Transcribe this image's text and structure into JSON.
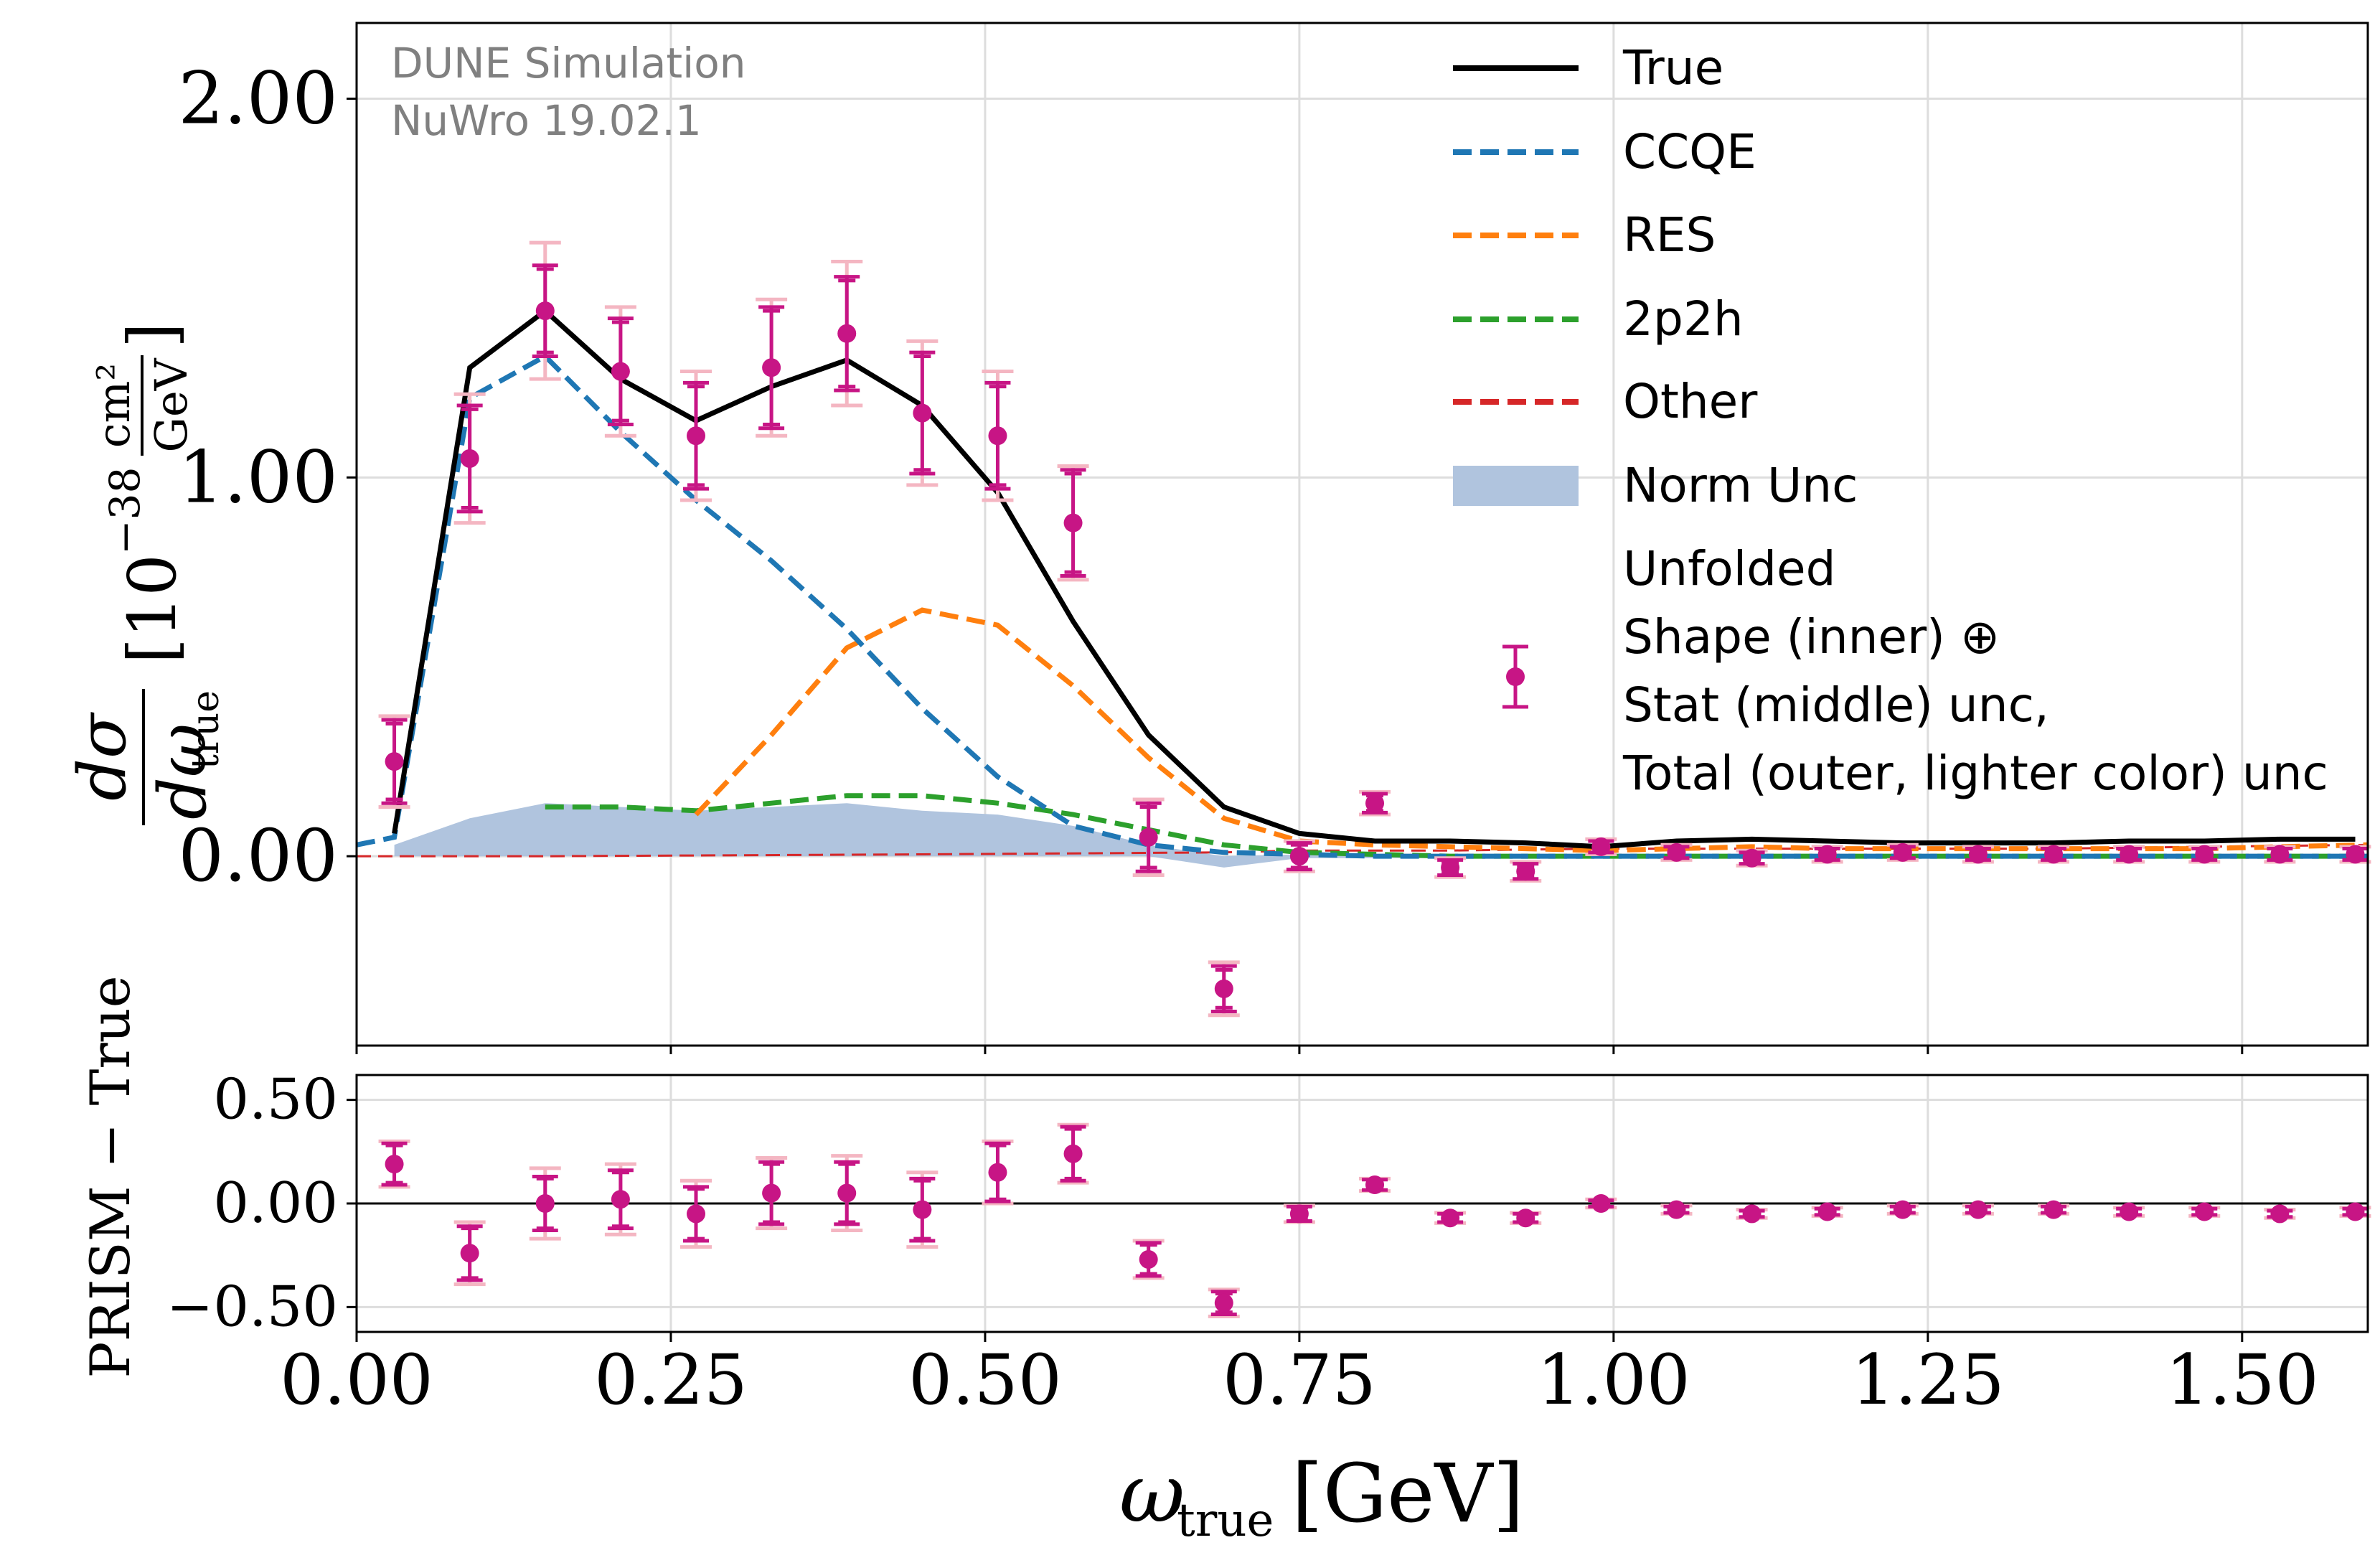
{
  "chart_data": [
    {
      "type": "line",
      "panel": "main",
      "annotation": [
        "DUNE Simulation",
        "NuWro 19.02.1"
      ],
      "ylabel_parts": {
        "num": "dσ",
        "den": "dω",
        "den_sub": "true",
        "unit_prefix": "[10",
        "unit_exp": "−38",
        "unit_num": "cm²",
        "unit_den": "GeV",
        "unit_close": "]"
      },
      "ylim": [
        -0.5,
        2.2
      ],
      "yticks": [
        0.0,
        1.0,
        2.0
      ],
      "ytick_labels": [
        "0.00",
        "1.00",
        "2.00"
      ],
      "xlim": [
        0.0,
        1.6
      ],
      "grid": true,
      "legend_position": "top-right",
      "colors": {
        "true": "#000000",
        "ccqe": "#1f77b4",
        "res": "#ff7f0e",
        "2p2h": "#2ca02c",
        "other": "#d62728",
        "norm": "#b0c4de",
        "unfolded": "#c71585",
        "unfolded_outer": "#f4b6c2",
        "grid": "#dddddd",
        "annotation": "#808080"
      },
      "legend_items": [
        {
          "key": "true",
          "label": "True",
          "style": "solid"
        },
        {
          "key": "ccqe",
          "label": "CCQE",
          "style": "dashed"
        },
        {
          "key": "res",
          "label": "RES",
          "style": "dashed"
        },
        {
          "key": "2p2h",
          "label": "2p2h",
          "style": "dashed"
        },
        {
          "key": "other",
          "label": "Other",
          "style": "dashed"
        },
        {
          "key": "norm",
          "label": "Norm Unc",
          "style": "band"
        },
        {
          "key": "unfolded",
          "label_lines": [
            "Unfolded",
            "Shape (inner) ⊕",
            "Stat (middle) unc,",
            "Total (outer, lighter color) unc"
          ],
          "style": "errorbar"
        }
      ],
      "series": [
        {
          "name": "True",
          "key": "true",
          "x": [
            0.03,
            0.09,
            0.15,
            0.21,
            0.27,
            0.33,
            0.39,
            0.45,
            0.51,
            0.57,
            0.63,
            0.69,
            0.75,
            0.81,
            0.87,
            0.93,
            0.99,
            1.05,
            1.11,
            1.17,
            1.23,
            1.29,
            1.35,
            1.41,
            1.47,
            1.53,
            1.59
          ],
          "y": [
            0.06,
            1.29,
            1.44,
            1.26,
            1.15,
            1.24,
            1.31,
            1.19,
            0.96,
            0.62,
            0.32,
            0.13,
            0.06,
            0.04,
            0.04,
            0.035,
            0.025,
            0.04,
            0.045,
            0.04,
            0.035,
            0.035,
            0.035,
            0.04,
            0.04,
            0.045,
            0.045
          ]
        },
        {
          "name": "CCQE",
          "key": "ccqe",
          "x": [
            0.0,
            0.03,
            0.09,
            0.15,
            0.21,
            0.27,
            0.33,
            0.39,
            0.45,
            0.51,
            0.57,
            0.63,
            0.69,
            0.75,
            0.81,
            0.87,
            0.93,
            0.99,
            1.05,
            1.11,
            1.17,
            1.23,
            1.29,
            1.35,
            1.41,
            1.47,
            1.53,
            1.6
          ],
          "y": [
            0.03,
            0.05,
            1.21,
            1.32,
            1.12,
            0.94,
            0.78,
            0.6,
            0.39,
            0.21,
            0.08,
            0.03,
            0.01,
            0.005,
            0.0,
            0.0,
            0.0,
            0.0,
            0.0,
            0.0,
            0.0,
            0.0,
            0.0,
            0.0,
            0.0,
            0.0,
            0.0,
            0.0
          ]
        },
        {
          "name": "RES",
          "key": "res",
          "x": [
            0.27,
            0.33,
            0.39,
            0.45,
            0.51,
            0.57,
            0.63,
            0.69,
            0.75,
            0.81,
            0.87,
            0.93,
            0.99,
            1.05,
            1.11,
            1.17,
            1.23,
            1.29,
            1.35,
            1.41,
            1.47,
            1.53,
            1.6
          ],
          "y": [
            0.11,
            0.32,
            0.55,
            0.65,
            0.61,
            0.45,
            0.26,
            0.1,
            0.04,
            0.03,
            0.025,
            0.02,
            0.015,
            0.02,
            0.025,
            0.02,
            0.02,
            0.02,
            0.02,
            0.02,
            0.02,
            0.025,
            0.03
          ]
        },
        {
          "name": "2p2h",
          "key": "2p2h",
          "x": [
            0.15,
            0.21,
            0.27,
            0.33,
            0.39,
            0.45,
            0.51,
            0.57,
            0.63,
            0.69,
            0.75,
            0.81,
            0.87,
            0.93,
            0.99,
            1.05,
            1.11,
            1.17,
            1.23,
            1.29,
            1.35,
            1.41,
            1.47,
            1.53,
            1.6
          ],
          "y": [
            0.13,
            0.13,
            0.12,
            0.14,
            0.16,
            0.16,
            0.14,
            0.11,
            0.07,
            0.03,
            0.01,
            0.005,
            0.0,
            0.0,
            0.0,
            0.0,
            0.0,
            0.0,
            0.0,
            0.0,
            0.0,
            0.0,
            0.0,
            0.0,
            0.0
          ]
        },
        {
          "name": "Other",
          "key": "other",
          "x": [
            0.0,
            0.15,
            0.45,
            0.69,
            0.75,
            0.87,
            0.99,
            1.11,
            1.23,
            1.35,
            1.47,
            1.6
          ],
          "y": [
            0.0,
            0.0,
            0.005,
            0.01,
            0.015,
            0.015,
            0.02,
            0.02,
            0.02,
            0.02,
            0.025,
            0.03
          ]
        },
        {
          "name": "Norm Unc",
          "key": "norm",
          "x": [
            0.03,
            0.09,
            0.15,
            0.21,
            0.27,
            0.33,
            0.39,
            0.45,
            0.51,
            0.57,
            0.63,
            0.69,
            0.75,
            0.81,
            0.87,
            0.93,
            0.99,
            1.05,
            1.11,
            1.17,
            1.23,
            1.29,
            1.35,
            1.41,
            1.47,
            1.53,
            1.6
          ],
          "y_high": [
            0.03,
            0.1,
            0.14,
            0.13,
            0.12,
            0.13,
            0.14,
            0.12,
            0.11,
            0.08,
            0.03,
            0.0,
            0.005,
            0.005,
            0.005,
            0.005,
            0.005,
            0.005,
            0.005,
            0.005,
            0.005,
            0.005,
            0.005,
            0.005,
            0.005,
            0.005,
            0.005
          ],
          "y_low": [
            0.0,
            0.0,
            0.0,
            0.0,
            0.0,
            0.0,
            0.0,
            0.0,
            0.0,
            0.0,
            0.0,
            -0.03,
            -0.005,
            -0.005,
            -0.005,
            -0.005,
            -0.005,
            -0.005,
            -0.005,
            -0.005,
            -0.005,
            -0.005,
            -0.005,
            -0.005,
            -0.005,
            -0.005,
            -0.005
          ]
        },
        {
          "name": "Unfolded",
          "key": "unfolded",
          "x": [
            0.03,
            0.09,
            0.15,
            0.21,
            0.27,
            0.33,
            0.39,
            0.45,
            0.51,
            0.57,
            0.63,
            0.69,
            0.75,
            0.81,
            0.87,
            0.93,
            0.99,
            1.05,
            1.11,
            1.17,
            1.23,
            1.29,
            1.35,
            1.41,
            1.47,
            1.53,
            1.59
          ],
          "y": [
            0.25,
            1.05,
            1.44,
            1.28,
            1.11,
            1.29,
            1.38,
            1.17,
            1.11,
            0.88,
            0.05,
            -0.35,
            0.0,
            0.14,
            -0.03,
            -0.04,
            0.025,
            0.01,
            -0.005,
            0.005,
            0.01,
            0.005,
            0.005,
            0.005,
            0.005,
            0.005,
            0.005
          ],
          "err_inner": [
            0.1,
            0.13,
            0.11,
            0.13,
            0.13,
            0.15,
            0.14,
            0.15,
            0.13,
            0.13,
            0.08,
            0.05,
            0.03,
            0.02,
            0.015,
            0.015,
            0.01,
            0.01,
            0.01,
            0.01,
            0.01,
            0.01,
            0.01,
            0.01,
            0.01,
            0.01,
            0.01
          ],
          "err_mid": [
            0.11,
            0.14,
            0.12,
            0.14,
            0.14,
            0.16,
            0.15,
            0.16,
            0.14,
            0.14,
            0.09,
            0.06,
            0.035,
            0.025,
            0.02,
            0.02,
            0.015,
            0.015,
            0.015,
            0.015,
            0.015,
            0.015,
            0.015,
            0.015,
            0.015,
            0.015,
            0.015
          ],
          "err_outer": [
            0.12,
            0.17,
            0.18,
            0.17,
            0.17,
            0.18,
            0.19,
            0.19,
            0.17,
            0.15,
            0.1,
            0.07,
            0.04,
            0.03,
            0.025,
            0.025,
            0.02,
            0.02,
            0.02,
            0.02,
            0.02,
            0.02,
            0.02,
            0.02,
            0.02,
            0.02,
            0.02
          ]
        }
      ]
    },
    {
      "type": "scatter",
      "panel": "ratio",
      "ylabel": "PRISM − True",
      "ylim": [
        -0.62,
        0.62
      ],
      "yticks": [
        -0.5,
        0.0,
        0.5
      ],
      "ytick_labels": [
        "−0.50",
        "0.00",
        "0.50"
      ],
      "xlim": [
        0.0,
        1.6
      ],
      "xticks": [
        0.0,
        0.25,
        0.5,
        0.75,
        1.0,
        1.25,
        1.5
      ],
      "xtick_labels": [
        "0.00",
        "0.25",
        "0.50",
        "0.75",
        "1.00",
        "1.25",
        "1.50"
      ],
      "xlabel_parts": {
        "symbol": "ω",
        "sub": "true",
        "unit": "[GeV]"
      },
      "grid": true,
      "reference_line": 0.0,
      "series": [
        {
          "key": "diff",
          "x": [
            0.03,
            0.09,
            0.15,
            0.21,
            0.27,
            0.33,
            0.39,
            0.45,
            0.51,
            0.57,
            0.63,
            0.69,
            0.75,
            0.81,
            0.87,
            0.93,
            0.99,
            1.05,
            1.11,
            1.17,
            1.23,
            1.29,
            1.35,
            1.41,
            1.47,
            1.53,
            1.59
          ],
          "y": [
            0.19,
            -0.24,
            0.0,
            0.02,
            -0.05,
            0.05,
            0.05,
            -0.03,
            0.15,
            0.24,
            -0.27,
            -0.48,
            -0.05,
            0.09,
            -0.07,
            -0.07,
            0.0,
            -0.03,
            -0.05,
            -0.04,
            -0.03,
            -0.03,
            -0.03,
            -0.04,
            -0.04,
            -0.05,
            -0.04
          ],
          "err_inner": [
            0.09,
            0.12,
            0.12,
            0.13,
            0.12,
            0.14,
            0.14,
            0.14,
            0.13,
            0.12,
            0.07,
            0.045,
            0.03,
            0.02,
            0.015,
            0.015,
            0.01,
            0.01,
            0.01,
            0.01,
            0.01,
            0.01,
            0.01,
            0.01,
            0.01,
            0.01,
            0.01
          ],
          "err_mid": [
            0.1,
            0.13,
            0.13,
            0.14,
            0.13,
            0.15,
            0.15,
            0.15,
            0.14,
            0.13,
            0.08,
            0.055,
            0.035,
            0.025,
            0.02,
            0.02,
            0.015,
            0.015,
            0.015,
            0.015,
            0.015,
            0.015,
            0.015,
            0.015,
            0.015,
            0.015,
            0.015
          ],
          "err_outer": [
            0.11,
            0.15,
            0.17,
            0.17,
            0.16,
            0.17,
            0.18,
            0.18,
            0.15,
            0.14,
            0.09,
            0.065,
            0.04,
            0.03,
            0.025,
            0.025,
            0.02,
            0.02,
            0.02,
            0.02,
            0.02,
            0.02,
            0.02,
            0.02,
            0.02,
            0.02,
            0.02
          ]
        }
      ]
    }
  ]
}
